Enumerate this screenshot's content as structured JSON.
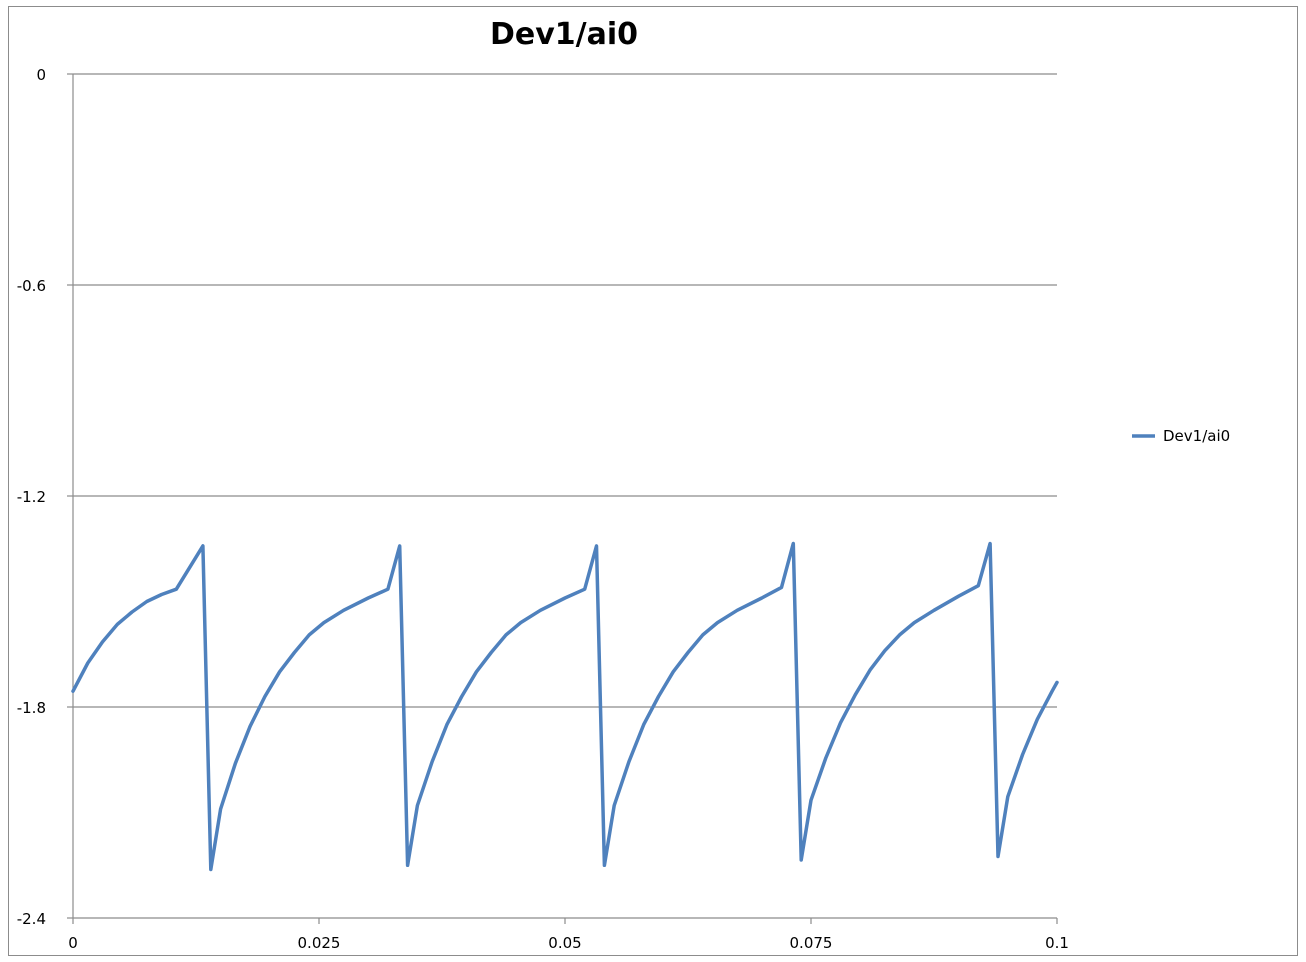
{
  "chart_data": {
    "type": "line",
    "title": "Dev1/ai0",
    "xlabel": "",
    "ylabel": "",
    "xlim": [
      0,
      0.1
    ],
    "ylim": [
      -2.4,
      0
    ],
    "x_ticks": [
      "0",
      "0.025",
      "0.05",
      "0.075",
      "0.1"
    ],
    "x_tick_values": [
      0,
      0.025,
      0.05,
      0.075,
      0.1
    ],
    "y_ticks": [
      "0",
      "-0.6",
      "-1.2",
      "-1.8",
      "-2.4"
    ],
    "y_tick_values": [
      0,
      -0.6,
      -1.2,
      -1.8,
      -2.4
    ],
    "grid": "horizontal",
    "legend_position": "right",
    "series": [
      {
        "name": "Dev1/ai0",
        "color": "#4F81BD",
        "points": [
          [
            0.0,
            -1.755
          ],
          [
            0.0015,
            -1.675
          ],
          [
            0.003,
            -1.615
          ],
          [
            0.0045,
            -1.565
          ],
          [
            0.006,
            -1.53
          ],
          [
            0.0075,
            -1.5
          ],
          [
            0.009,
            -1.48
          ],
          [
            0.0105,
            -1.465
          ],
          [
            0.0132,
            -1.342
          ],
          [
            0.014,
            -2.262
          ],
          [
            0.015,
            -2.09
          ],
          [
            0.0165,
            -1.96
          ],
          [
            0.018,
            -1.855
          ],
          [
            0.0195,
            -1.77
          ],
          [
            0.021,
            -1.7
          ],
          [
            0.0225,
            -1.645
          ],
          [
            0.024,
            -1.595
          ],
          [
            0.0255,
            -1.56
          ],
          [
            0.0275,
            -1.525
          ],
          [
            0.03,
            -1.49
          ],
          [
            0.032,
            -1.465
          ],
          [
            0.0332,
            -1.342
          ],
          [
            0.034,
            -2.25
          ],
          [
            0.035,
            -2.08
          ],
          [
            0.0365,
            -1.955
          ],
          [
            0.038,
            -1.85
          ],
          [
            0.0395,
            -1.77
          ],
          [
            0.041,
            -1.7
          ],
          [
            0.0425,
            -1.645
          ],
          [
            0.044,
            -1.595
          ],
          [
            0.0455,
            -1.56
          ],
          [
            0.0475,
            -1.525
          ],
          [
            0.05,
            -1.49
          ],
          [
            0.052,
            -1.465
          ],
          [
            0.0532,
            -1.342
          ],
          [
            0.054,
            -2.25
          ],
          [
            0.055,
            -2.08
          ],
          [
            0.0565,
            -1.955
          ],
          [
            0.058,
            -1.85
          ],
          [
            0.0595,
            -1.77
          ],
          [
            0.061,
            -1.7
          ],
          [
            0.0625,
            -1.645
          ],
          [
            0.064,
            -1.595
          ],
          [
            0.0655,
            -1.56
          ],
          [
            0.0675,
            -1.525
          ],
          [
            0.07,
            -1.49
          ],
          [
            0.072,
            -1.46
          ],
          [
            0.0732,
            -1.335
          ],
          [
            0.074,
            -2.235
          ],
          [
            0.075,
            -2.065
          ],
          [
            0.0765,
            -1.945
          ],
          [
            0.078,
            -1.845
          ],
          [
            0.0795,
            -1.765
          ],
          [
            0.081,
            -1.695
          ],
          [
            0.0825,
            -1.64
          ],
          [
            0.084,
            -1.595
          ],
          [
            0.0855,
            -1.56
          ],
          [
            0.0875,
            -1.525
          ],
          [
            0.09,
            -1.485
          ],
          [
            0.092,
            -1.455
          ],
          [
            0.0932,
            -1.335
          ],
          [
            0.094,
            -2.225
          ],
          [
            0.095,
            -2.055
          ],
          [
            0.0965,
            -1.935
          ],
          [
            0.098,
            -1.835
          ],
          [
            0.0995,
            -1.755
          ],
          [
            0.1,
            -1.73
          ]
        ]
      }
    ]
  }
}
